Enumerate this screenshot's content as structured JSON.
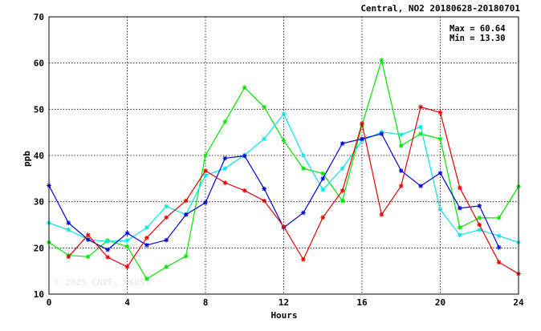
{
  "chart_data": {
    "type": "line",
    "title": "Central, NO2 20180628-20180701",
    "xlabel": "Hours",
    "ylabel": "ppb",
    "xlim": [
      0,
      24
    ],
    "ylim": [
      10,
      70
    ],
    "xticks": [
      0,
      4,
      8,
      12,
      16,
      20,
      24
    ],
    "yticks": [
      10,
      20,
      30,
      40,
      50,
      60,
      70
    ],
    "grid": true,
    "stats": {
      "max": "Max = 60.64",
      "min": "Min = 13.30"
    },
    "watermark": "© 2025 ENVF, HKUST",
    "x": [
      0,
      1,
      2,
      3,
      4,
      5,
      6,
      7,
      8,
      9,
      10,
      11,
      12,
      13,
      14,
      15,
      16,
      17,
      18,
      19,
      20,
      21,
      22,
      23,
      24
    ],
    "series": [
      {
        "color": "#00e600",
        "values": [
          21.2,
          18.4,
          18.1,
          21.6,
          20.3,
          13.3,
          15.9,
          18.2,
          40.0,
          47.3,
          54.7,
          50.5,
          43.2,
          37.2,
          36.1,
          30.2,
          46.6,
          60.6,
          42.1,
          44.7,
          43.6,
          24.4,
          26.5,
          26.5,
          33.3
        ]
      },
      {
        "color": "#00e6e6",
        "values": [
          25.4,
          23.9,
          21.8,
          21.4,
          21.6,
          24.4,
          29.0,
          27.2,
          35.7,
          37.2,
          40.1,
          43.6,
          49.0,
          40.0,
          32.6,
          37.2,
          43.2,
          45.1,
          44.5,
          46.2,
          28.3,
          22.8,
          23.9,
          22.6,
          21.2
        ]
      },
      {
        "color": "#0000dd",
        "values": [
          33.5,
          25.4,
          21.8,
          19.6,
          23.2,
          20.6,
          21.7,
          27.2,
          29.8,
          39.4,
          39.9,
          32.8,
          24.4,
          27.6,
          35.0,
          42.6,
          43.6,
          44.7,
          36.7,
          33.4,
          36.2,
          28.6,
          29.1,
          20.1,
          null
        ]
      },
      {
        "color": "#e60000",
        "values": [
          null,
          18.1,
          22.8,
          18.0,
          15.9,
          22.2,
          26.6,
          30.2,
          36.7,
          34.1,
          32.4,
          30.2,
          24.6,
          17.5,
          26.6,
          32.4,
          46.9,
          27.2,
          33.4,
          50.5,
          49.3,
          33.0,
          25.0,
          16.9,
          14.4
        ]
      }
    ]
  }
}
